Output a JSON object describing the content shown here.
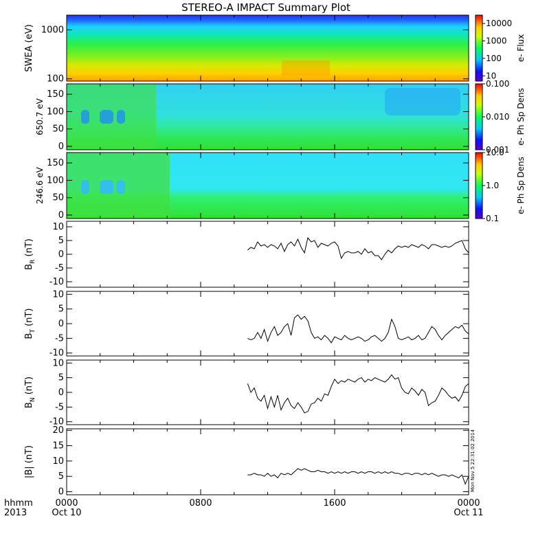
{
  "title": "STEREO-A IMPACT Summary Plot",
  "stamp": "Mon Nov  5 22:31:02 2014",
  "footer": {
    "time_label": "hhmm",
    "year_label": "2013"
  },
  "colors": {
    "trace": "#000000",
    "frame": "#000000"
  },
  "chart_data": [
    {
      "type": "heatmap",
      "panel": "swea",
      "ylabel": "SWEA (eV)",
      "y_scale": "log",
      "y_ticks": [
        "1000",
        "100"
      ],
      "y_tick_values": [
        1000,
        100
      ],
      "ylim": [
        90,
        2000
      ],
      "colorbar": {
        "label": "e- Flux",
        "scale": "log",
        "ticks": [
          "10000",
          "1000",
          "100",
          "10"
        ],
        "tick_values": [
          10000,
          1000,
          100,
          10
        ],
        "range": [
          5,
          30000
        ]
      }
    },
    {
      "type": "heatmap",
      "panel": "pad_650",
      "ylabel": "650.7 eV",
      "y_ticks": [
        "150",
        "100",
        "50",
        "0"
      ],
      "y_tick_values": [
        150,
        100,
        50,
        0
      ],
      "ylim": [
        -10,
        180
      ],
      "colorbar": {
        "label": "e- Ph Sp Dens",
        "scale": "log",
        "ticks": [
          "0.100",
          "0.010",
          "0.001"
        ],
        "tick_values": [
          0.1,
          0.01,
          0.001
        ],
        "range": [
          0.001,
          0.1
        ]
      }
    },
    {
      "type": "heatmap",
      "panel": "pad_246",
      "ylabel": "246.6 eV",
      "y_ticks": [
        "150",
        "100",
        "50",
        "0"
      ],
      "y_tick_values": [
        150,
        100,
        50,
        0
      ],
      "ylim": [
        -10,
        180
      ],
      "colorbar": {
        "label": "e- Ph Sp Dens",
        "scale": "log",
        "ticks": [
          "10.0",
          "1.0",
          "0.1"
        ],
        "tick_values": [
          10,
          1,
          0.1
        ],
        "range": [
          0.1,
          10
        ]
      }
    },
    {
      "type": "line",
      "panel": "br",
      "ylabel_main": "B",
      "ylabel_sub": "R",
      "ylabel_unit": " (nT)",
      "ylim": [
        -12,
        12
      ],
      "y_ticks": [
        "10",
        "5",
        "0",
        "-5",
        "-10"
      ],
      "y_tick_values": [
        10,
        5,
        0,
        -5,
        -10
      ],
      "x": [
        10.8,
        11.0,
        11.2,
        11.4,
        11.6,
        11.8,
        12.0,
        12.2,
        12.4,
        12.6,
        12.8,
        13.0,
        13.2,
        13.4,
        13.6,
        13.8,
        14.0,
        14.2,
        14.4,
        14.6,
        14.8,
        15.0,
        15.2,
        15.4,
        15.6,
        15.8,
        16.0,
        16.2,
        16.4,
        16.6,
        16.8,
        17.0,
        17.2,
        17.4,
        17.6,
        17.8,
        18.0,
        18.2,
        18.4,
        18.6,
        18.8,
        19.0,
        19.2,
        19.4,
        19.6,
        19.8,
        20.0,
        20.2,
        20.4,
        20.6,
        20.8,
        21.0,
        21.2,
        21.4,
        21.6,
        21.8,
        22.0,
        22.2,
        22.4,
        22.6,
        22.8,
        23.0,
        23.2,
        23.4,
        23.6,
        23.8,
        24.0
      ],
      "y": [
        1.5,
        2.5,
        2.0,
        4.5,
        3.0,
        3.5,
        2.5,
        3.5,
        3.0,
        2.0,
        4.0,
        1.0,
        3.5,
        4.5,
        3.0,
        5.5,
        2.5,
        0.5,
        6.0,
        4.5,
        5.0,
        2.5,
        4.0,
        3.5,
        3.0,
        4.0,
        4.5,
        3.0,
        -1.5,
        0.5,
        1.0,
        0.5,
        0.5,
        1.0,
        0.0,
        2.0,
        0.5,
        1.0,
        -0.5,
        -0.5,
        -2.0,
        0.0,
        1.5,
        0.5,
        2.0,
        3.0,
        2.5,
        3.0,
        2.5,
        3.5,
        3.0,
        2.5,
        3.5,
        3.0,
        2.0,
        3.5,
        3.5,
        3.0,
        2.5,
        3.0,
        2.5,
        3.0,
        4.0,
        4.5,
        5.0,
        2.0,
        0.5
      ]
    },
    {
      "type": "line",
      "panel": "bt",
      "ylabel_main": "B",
      "ylabel_sub": "T",
      "ylabel_unit": " (nT)",
      "ylim": [
        -11,
        11
      ],
      "y_ticks": [
        "10",
        "5",
        "0",
        "-5",
        "-10"
      ],
      "y_tick_values": [
        10,
        5,
        0,
        -5,
        -10
      ],
      "x": [
        10.8,
        11.0,
        11.2,
        11.4,
        11.6,
        11.8,
        12.0,
        12.2,
        12.4,
        12.6,
        12.8,
        13.0,
        13.2,
        13.4,
        13.6,
        13.8,
        14.0,
        14.2,
        14.4,
        14.6,
        14.8,
        15.0,
        15.2,
        15.4,
        15.6,
        15.8,
        16.0,
        16.2,
        16.4,
        16.6,
        16.8,
        17.0,
        17.2,
        17.4,
        17.6,
        17.8,
        18.0,
        18.2,
        18.4,
        18.6,
        18.8,
        19.0,
        19.2,
        19.4,
        19.6,
        19.8,
        20.0,
        20.2,
        20.4,
        20.6,
        20.8,
        21.0,
        21.2,
        21.4,
        21.6,
        21.8,
        22.0,
        22.2,
        22.4,
        22.6,
        22.8,
        23.0,
        23.2,
        23.4,
        23.6,
        23.8,
        24.0
      ],
      "y": [
        -5.0,
        -5.5,
        -5.0,
        -3.0,
        -5.0,
        -2.0,
        -6.0,
        -3.0,
        -1.0,
        -4.0,
        -3.0,
        -1.0,
        0.0,
        -4.0,
        2.0,
        3.0,
        1.5,
        2.5,
        1.0,
        -3.0,
        -5.0,
        -4.5,
        -5.5,
        -4.0,
        -5.0,
        -6.5,
        -4.5,
        -5.0,
        -5.5,
        -4.0,
        -5.0,
        -5.5,
        -5.0,
        -4.5,
        -5.0,
        -6.0,
        -5.5,
        -4.5,
        -4.0,
        -5.0,
        -6.0,
        -5.0,
        -3.0,
        1.5,
        -1.0,
        -5.0,
        -5.5,
        -5.0,
        -4.5,
        -5.5,
        -5.0,
        -4.0,
        -5.5,
        -5.0,
        -3.0,
        -1.0,
        -2.0,
        -4.0,
        -5.5,
        -4.0,
        -3.0,
        -2.0,
        -1.0,
        -1.5,
        -0.5,
        -2.5,
        -3.5
      ]
    },
    {
      "type": "line",
      "panel": "bn",
      "ylabel_main": "B",
      "ylabel_sub": "N",
      "ylabel_unit": " (nT)",
      "ylim": [
        -11,
        11
      ],
      "y_ticks": [
        "10",
        "5",
        "0",
        "-5",
        "-10"
      ],
      "y_tick_values": [
        10,
        5,
        0,
        -5,
        -10
      ],
      "x": [
        10.8,
        11.0,
        11.2,
        11.4,
        11.6,
        11.8,
        12.0,
        12.2,
        12.4,
        12.6,
        12.8,
        13.0,
        13.2,
        13.4,
        13.6,
        13.8,
        14.0,
        14.2,
        14.4,
        14.6,
        14.8,
        15.0,
        15.2,
        15.4,
        15.6,
        15.8,
        16.0,
        16.2,
        16.4,
        16.6,
        16.8,
        17.0,
        17.2,
        17.4,
        17.6,
        17.8,
        18.0,
        18.2,
        18.4,
        18.6,
        18.8,
        19.0,
        19.2,
        19.4,
        19.6,
        19.8,
        20.0,
        20.2,
        20.4,
        20.6,
        20.8,
        21.0,
        21.2,
        21.4,
        21.6,
        21.8,
        22.0,
        22.2,
        22.4,
        22.6,
        22.8,
        23.0,
        23.2,
        23.4,
        23.6,
        23.8,
        24.0
      ],
      "y": [
        3.0,
        0.0,
        1.5,
        -2.0,
        -3.0,
        -1.0,
        -5.5,
        -1.5,
        -5.0,
        -1.0,
        -6.0,
        -3.5,
        -2.0,
        -4.5,
        -5.5,
        -3.5,
        -5.0,
        -7.0,
        -6.5,
        -4.0,
        -3.5,
        -2.0,
        -3.0,
        -0.5,
        -1.0,
        2.0,
        4.5,
        3.0,
        4.0,
        3.5,
        4.5,
        4.0,
        3.5,
        4.5,
        5.0,
        3.5,
        4.5,
        4.0,
        5.0,
        4.5,
        4.0,
        3.5,
        4.5,
        6.0,
        4.5,
        5.0,
        1.5,
        0.0,
        -0.5,
        1.5,
        0.5,
        -1.0,
        1.0,
        0.0,
        -4.5,
        -3.5,
        -3.0,
        -1.0,
        1.5,
        0.5,
        -1.0,
        -2.0,
        -1.5,
        -3.0,
        -1.0,
        2.0,
        3.0
      ]
    },
    {
      "type": "line",
      "panel": "bmag",
      "ylabel": "|B| (nT)",
      "ylim": [
        -1,
        20.5
      ],
      "y_ticks": [
        "20",
        "15",
        "10",
        "5",
        "0"
      ],
      "y_tick_values": [
        20,
        15,
        10,
        5,
        0
      ],
      "x": [
        10.8,
        11.0,
        11.2,
        11.4,
        11.6,
        11.8,
        12.0,
        12.2,
        12.4,
        12.6,
        12.8,
        13.0,
        13.2,
        13.4,
        13.6,
        13.8,
        14.0,
        14.2,
        14.4,
        14.6,
        14.8,
        15.0,
        15.2,
        15.4,
        15.6,
        15.8,
        16.0,
        16.2,
        16.4,
        16.6,
        16.8,
        17.0,
        17.2,
        17.4,
        17.6,
        17.8,
        18.0,
        18.2,
        18.4,
        18.6,
        18.8,
        19.0,
        19.2,
        19.4,
        19.6,
        19.8,
        20.0,
        20.2,
        20.4,
        20.6,
        20.8,
        21.0,
        21.2,
        21.4,
        21.6,
        21.8,
        22.0,
        22.2,
        22.4,
        22.6,
        22.8,
        23.0,
        23.2,
        23.4,
        23.6,
        23.8,
        24.0
      ],
      "y": [
        5.5,
        5.5,
        6.0,
        5.5,
        5.5,
        5.0,
        6.0,
        5.0,
        5.5,
        4.5,
        6.0,
        5.5,
        6.0,
        5.5,
        6.5,
        7.5,
        7.0,
        7.5,
        7.0,
        6.5,
        6.5,
        7.0,
        6.5,
        6.5,
        6.0,
        6.5,
        6.0,
        6.5,
        6.0,
        6.5,
        6.0,
        6.5,
        6.5,
        6.0,
        6.5,
        6.0,
        6.5,
        6.5,
        6.0,
        6.5,
        6.0,
        6.5,
        6.0,
        6.5,
        6.0,
        6.0,
        5.5,
        6.0,
        6.0,
        5.5,
        6.0,
        6.0,
        5.5,
        6.0,
        5.5,
        6.0,
        5.5,
        5.0,
        5.5,
        5.5,
        5.0,
        5.5,
        5.0,
        4.5,
        5.5,
        2.5,
        5.0
      ]
    }
  ],
  "x_axis": {
    "range_hours": [
      0,
      24
    ],
    "ticks": [
      {
        "hour": 0,
        "label": "0000",
        "date": "Oct 10"
      },
      {
        "hour": 8,
        "label": "0800",
        "date": ""
      },
      {
        "hour": 16,
        "label": "1600",
        "date": ""
      },
      {
        "hour": 24,
        "label": "0000",
        "date": "Oct 11"
      }
    ]
  }
}
